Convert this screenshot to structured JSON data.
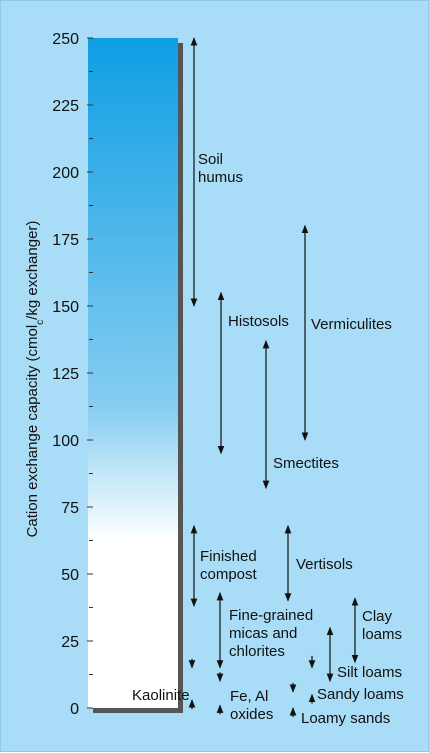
{
  "chart_data": {
    "type": "range",
    "ylabel_main": "Cation exchange capacity (cmol",
    "ylabel_sub": "c",
    "ylabel_tail": "/kg exchanger)",
    "ylim": [
      0,
      250
    ],
    "ticks": [
      "0",
      "25",
      "50",
      "75",
      "100",
      "125",
      "150",
      "175",
      "200",
      "225",
      "250"
    ],
    "gradient_colors": [
      "#0f9ee3",
      "#ffffff"
    ],
    "ranges": [
      {
        "name": "Soil humus",
        "lines": [
          "Soil",
          "humus"
        ],
        "low": 150,
        "high": 250
      },
      {
        "name": "Histosols",
        "lines": [
          "Histosols"
        ],
        "low": 95,
        "high": 155
      },
      {
        "name": "Vermiculites",
        "lines": [
          "Vermiculites"
        ],
        "low": 100,
        "high": 180
      },
      {
        "name": "Smectites",
        "lines": [
          "Smectites"
        ],
        "low": 82,
        "high": 137
      },
      {
        "name": "Finished compost",
        "lines": [
          "Finished",
          "compost"
        ],
        "low": 38,
        "high": 68
      },
      {
        "name": "Vertisols",
        "lines": [
          "Vertisols"
        ],
        "low": 40,
        "high": 68
      },
      {
        "name": "Fine-grained micas and chlorites",
        "lines": [
          "Fine-grained",
          "micas and",
          "chlorites"
        ],
        "low": 15,
        "high": 43
      },
      {
        "name": "Clay loams",
        "lines": [
          "Clay",
          "loams"
        ],
        "low": 17,
        "high": 41
      },
      {
        "name": "Silt loams",
        "lines": [
          "Silt loams"
        ],
        "low": 10,
        "high": 30
      },
      {
        "name": "Sandy loams",
        "lines": [
          "Sandy loams"
        ],
        "low": 5,
        "high": 15
      },
      {
        "name": "Kaolinite",
        "lines": [
          "Kaolinite"
        ],
        "low": 3,
        "high": 15
      },
      {
        "name": "Fe, Al oxides",
        "lines": [
          "Fe, Al",
          "oxides"
        ],
        "low": 1,
        "high": 10
      },
      {
        "name": "Loamy sands",
        "lines": [
          "Loamy sands"
        ],
        "low": 0,
        "high": 6
      }
    ]
  }
}
